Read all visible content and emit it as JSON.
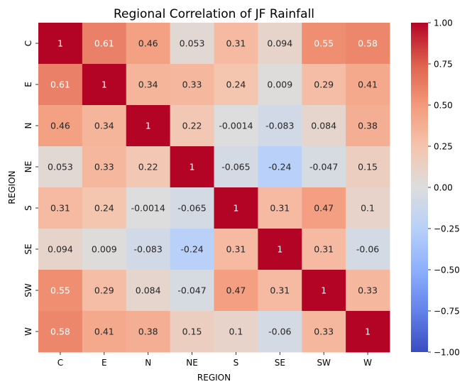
{
  "chart_data": {
    "type": "heatmap",
    "title": "Regional Correlation of JF Rainfall",
    "xlabel": "REGION",
    "ylabel": "REGION",
    "x_categories": [
      "C",
      "E",
      "N",
      "NE",
      "S",
      "SE",
      "SW",
      "W"
    ],
    "y_categories": [
      "C",
      "E",
      "N",
      "NE",
      "S",
      "SE",
      "SW",
      "W"
    ],
    "values": [
      [
        1,
        0.61,
        0.46,
        0.053,
        0.31,
        0.094,
        0.55,
        0.58
      ],
      [
        0.61,
        1,
        0.34,
        0.33,
        0.24,
        0.009,
        0.29,
        0.41
      ],
      [
        0.46,
        0.34,
        1,
        0.22,
        -0.0014,
        -0.083,
        0.084,
        0.38
      ],
      [
        0.053,
        0.33,
        0.22,
        1,
        -0.065,
        -0.24,
        -0.047,
        0.15
      ],
      [
        0.31,
        0.24,
        -0.0014,
        -0.065,
        1,
        0.31,
        0.47,
        0.1
      ],
      [
        0.094,
        0.009,
        -0.083,
        -0.24,
        0.31,
        1,
        0.31,
        -0.06
      ],
      [
        0.55,
        0.29,
        0.084,
        -0.047,
        0.47,
        0.31,
        1,
        0.33
      ],
      [
        0.58,
        0.41,
        0.38,
        0.15,
        0.1,
        -0.06,
        0.33,
        1
      ]
    ],
    "value_labels": [
      [
        "1",
        "0.61",
        "0.46",
        "0.053",
        "0.31",
        "0.094",
        "0.55",
        "0.58"
      ],
      [
        "0.61",
        "1",
        "0.34",
        "0.33",
        "0.24",
        "0.009",
        "0.29",
        "0.41"
      ],
      [
        "0.46",
        "0.34",
        "1",
        "0.22",
        "-0.0014",
        "-0.083",
        "0.084",
        "0.38"
      ],
      [
        "0.053",
        "0.33",
        "0.22",
        "1",
        "-0.065",
        "-0.24",
        "-0.047",
        "0.15"
      ],
      [
        "0.31",
        "0.24",
        "-0.0014",
        "-0.065",
        "1",
        "0.31",
        "0.47",
        "0.1"
      ],
      [
        "0.094",
        "0.009",
        "-0.083",
        "-0.24",
        "0.31",
        "1",
        "0.31",
        "-0.06"
      ],
      [
        "0.55",
        "0.29",
        "0.084",
        "-0.047",
        "0.47",
        "0.31",
        "1",
        "0.33"
      ],
      [
        "0.58",
        "0.41",
        "0.38",
        "0.15",
        "0.1",
        "-0.06",
        "0.33",
        "1"
      ]
    ],
    "colormap": "coolwarm",
    "vmin": -1,
    "vmax": 1,
    "colorbar": {
      "ticks": [
        -1,
        -0.75,
        -0.5,
        -0.25,
        0,
        0.25,
        0.5,
        0.75,
        1
      ],
      "tick_labels": [
        "−1.00",
        "−0.75",
        "−0.50",
        "−0.25",
        "0.00",
        "0.25",
        "0.50",
        "0.75",
        "1.00"
      ],
      "placement": "right"
    },
    "grid": false
  }
}
